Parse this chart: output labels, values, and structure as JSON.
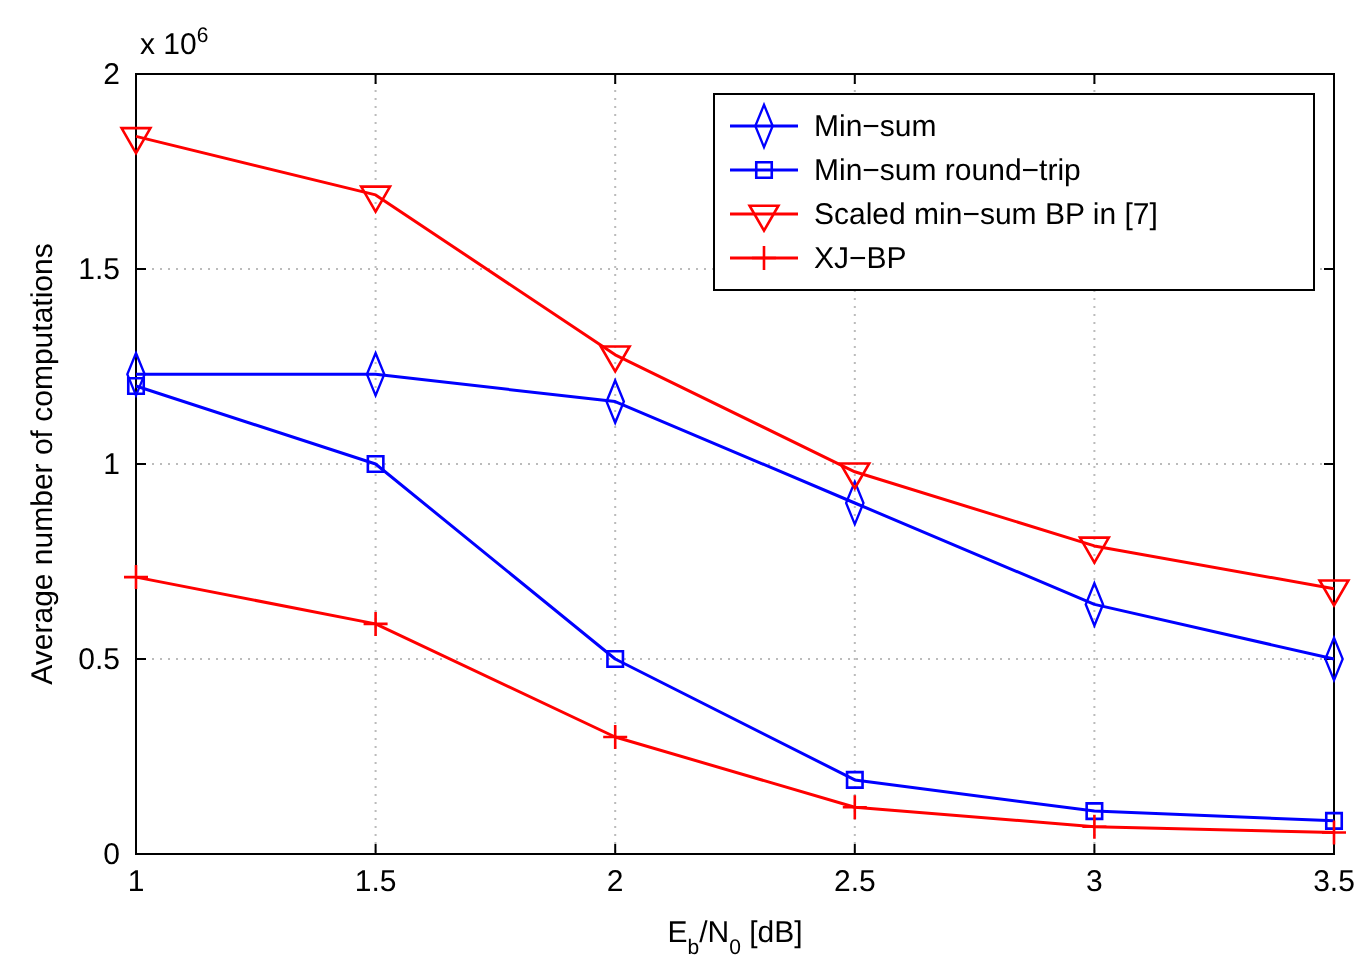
{
  "chart_data": {
    "type": "line",
    "xlabel": "E$_{b}$/N$_{0}$ [dB]",
    "ylabel": "Average number of computations",
    "annotations": [
      "x 10$^{6}$"
    ],
    "x": [
      1,
      1.5,
      2,
      2.5,
      3,
      3.5
    ],
    "xlim": [
      1,
      3.5
    ],
    "xticks": [
      1,
      1.5,
      2,
      2.5,
      3,
      3.5
    ],
    "ylim": [
      0,
      2
    ],
    "yticks": [
      0,
      0.5,
      1,
      1.5,
      2
    ],
    "grid": true,
    "legend": "top right",
    "line_style": "solid",
    "series": [
      {
        "name": "Min−sum",
        "color": "#0000ff",
        "marker": "diamond",
        "values": [
          1.23,
          1.23,
          1.16,
          0.9,
          0.64,
          0.5
        ]
      },
      {
        "name": "Min−sum round−trip",
        "color": "#0000ff",
        "marker": "square",
        "values": [
          1.2,
          1.0,
          0.5,
          0.19,
          0.11,
          0.085
        ]
      },
      {
        "name": "Scaled min−sum BP in [7]",
        "color": "#ff0000",
        "marker": "triangle",
        "values": [
          1.84,
          1.69,
          1.28,
          0.98,
          0.79,
          0.68
        ]
      },
      {
        "name": "XJ−BP",
        "color": "#ff0000",
        "marker": "cross",
        "values": [
          0.71,
          0.59,
          0.3,
          0.12,
          0.07,
          0.055
        ]
      }
    ]
  }
}
